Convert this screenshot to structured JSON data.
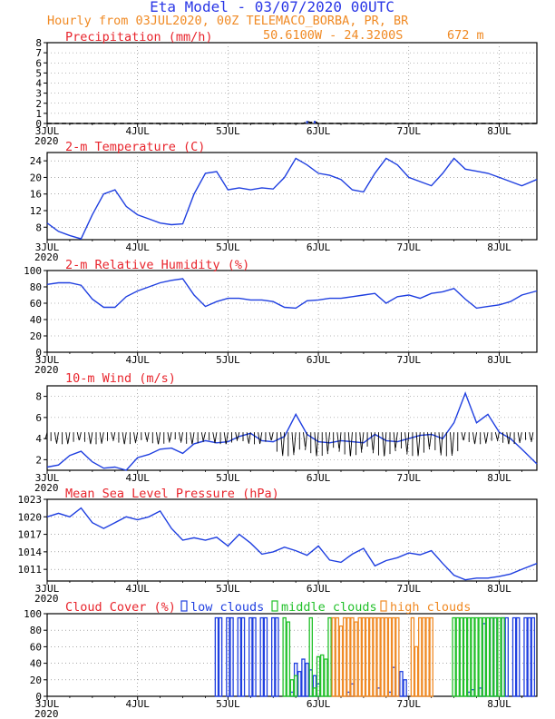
{
  "header": {
    "title": "Eta Model - 03/07/2020 00UTC",
    "subtitle": "Hourly from 03JUL2020, 00Z  TELEMACO_BORBA, PR, BR",
    "coords": "50.6100W - 24.3200S",
    "elevation": "672  m"
  },
  "colors": {
    "title": "#2a37e6",
    "subtitle": "#f08a24",
    "panel_title": "#e8242c",
    "temperature": "#1f3fe0",
    "low_clouds": "#1f3fe0",
    "middle_clouds": "#22c12a",
    "high_clouds": "#f08a24"
  },
  "days": [
    "3JUL",
    "4JUL",
    "5JUL",
    "6JUL",
    "7JUL",
    "8JUL"
  ],
  "year": "2020",
  "chart_data": [
    {
      "id": "precip",
      "type": "line",
      "title": "Precipitation (mm/h)",
      "ylim": [
        0,
        8
      ],
      "yticks": [
        "0",
        "1",
        "2",
        "3",
        "4",
        "5",
        "6",
        "7",
        "8"
      ],
      "series": [
        {
          "name": "precipitation",
          "x": [
            0,
            68,
            69,
            70,
            71,
            72,
            130
          ],
          "values": [
            0,
            0,
            0.2,
            0.1,
            0.2,
            0,
            0
          ]
        }
      ]
    },
    {
      "id": "temp",
      "type": "line",
      "title": "2-m Temperature (C)",
      "ylim": [
        5,
        26
      ],
      "yticks": [
        "8",
        "12",
        "16",
        "20",
        "24"
      ],
      "series": [
        {
          "name": "temperature",
          "x": [
            0,
            3,
            6,
            9,
            12,
            15,
            18,
            21,
            24,
            27,
            30,
            33,
            36,
            39,
            42,
            45,
            48,
            51,
            54,
            57,
            60,
            63,
            66,
            69,
            72,
            75,
            78,
            81,
            84,
            87,
            90,
            93,
            96,
            99,
            102,
            105,
            108,
            111,
            114,
            117,
            120,
            123,
            126,
            130
          ],
          "values": [
            9,
            7,
            6,
            5.2,
            11,
            16,
            17,
            13,
            11,
            10,
            9,
            8.6,
            8.8,
            16,
            21,
            21.4,
            17,
            17.5,
            17,
            17.5,
            17.2,
            20,
            24.6,
            23,
            21,
            20.5,
            19.5,
            17,
            16.5,
            21,
            24.6,
            23,
            20,
            19,
            18,
            21,
            24.6,
            22,
            21.5,
            21,
            20,
            19,
            18,
            19.5
          ]
        }
      ]
    },
    {
      "id": "rh",
      "type": "line",
      "title": "2-m Relative Humidity (%)",
      "ylim": [
        0,
        100
      ],
      "yticks": [
        "0",
        "20",
        "40",
        "60",
        "80",
        "100"
      ],
      "series": [
        {
          "name": "humidity",
          "x": [
            0,
            3,
            6,
            9,
            12,
            15,
            18,
            21,
            24,
            27,
            30,
            33,
            36,
            39,
            42,
            45,
            48,
            51,
            54,
            57,
            60,
            63,
            66,
            69,
            72,
            75,
            78,
            81,
            84,
            87,
            90,
            93,
            96,
            99,
            102,
            105,
            108,
            111,
            114,
            117,
            120,
            123,
            126,
            130
          ],
          "values": [
            83,
            85,
            85,
            82,
            65,
            55,
            55,
            68,
            75,
            80,
            85,
            88,
            90,
            70,
            56,
            62,
            66,
            66,
            64,
            64,
            62,
            55,
            54,
            63,
            64,
            66,
            66,
            68,
            70,
            72,
            60,
            68,
            70,
            66,
            72,
            74,
            78,
            65,
            54,
            56,
            58,
            62,
            70,
            75
          ]
        }
      ]
    },
    {
      "id": "wind",
      "type": "line",
      "title": "10-m Wind (m/s)",
      "ylim": [
        1,
        9
      ],
      "yticks": [
        "2",
        "4",
        "6",
        "8"
      ],
      "series": [
        {
          "name": "wind speed",
          "x": [
            0,
            3,
            6,
            9,
            12,
            15,
            18,
            21,
            24,
            27,
            30,
            33,
            36,
            39,
            42,
            45,
            48,
            51,
            54,
            57,
            60,
            63,
            66,
            69,
            72,
            75,
            78,
            81,
            84,
            87,
            90,
            93,
            96,
            99,
            102,
            105,
            108,
            111,
            114,
            117,
            120,
            123,
            126,
            130
          ],
          "values": [
            1.3,
            1.5,
            2.4,
            2.8,
            1.8,
            1.2,
            1.3,
            1.0,
            2.2,
            2.5,
            3.0,
            3.1,
            2.6,
            3.5,
            3.8,
            3.6,
            3.7,
            4.2,
            4.5,
            3.8,
            3.7,
            4.2,
            6.3,
            4.4,
            3.7,
            3.6,
            3.8,
            3.7,
            3.6,
            4.4,
            3.8,
            3.7,
            4.0,
            4.3,
            4.4,
            4.0,
            5.5,
            8.3,
            5.5,
            6.3,
            4.6,
            4.0,
            3.0,
            1.6
          ]
        }
      ]
    },
    {
      "id": "slp",
      "type": "line",
      "title": "Mean Sea Level Pressure (hPa)",
      "ylim": [
        1009,
        1023
      ],
      "yticks": [
        "1011",
        "1014",
        "1017",
        "1020",
        "1023"
      ],
      "series": [
        {
          "name": "pressure",
          "x": [
            0,
            3,
            6,
            9,
            12,
            15,
            18,
            21,
            24,
            27,
            30,
            33,
            36,
            39,
            42,
            45,
            48,
            51,
            54,
            57,
            60,
            63,
            66,
            69,
            72,
            75,
            78,
            81,
            84,
            87,
            90,
            93,
            96,
            99,
            102,
            105,
            108,
            111,
            114,
            117,
            120,
            123,
            126,
            130
          ],
          "values": [
            1020,
            1020.6,
            1020,
            1021.5,
            1019,
            1018,
            1019,
            1020,
            1019.5,
            1020,
            1021,
            1018,
            1016,
            1016.4,
            1016,
            1016.5,
            1015,
            1017,
            1015.5,
            1013.6,
            1014,
            1014.8,
            1014.2,
            1013.4,
            1015,
            1012.6,
            1012.2,
            1013.6,
            1014.6,
            1011.6,
            1012.5,
            1013,
            1013.8,
            1013.5,
            1014.2,
            1012.0,
            1010.0,
            1009.2,
            1009.5,
            1009.5,
            1009.8,
            1010.2,
            1011,
            1012
          ]
        }
      ]
    },
    {
      "id": "cloud",
      "type": "bar",
      "title": "Cloud Cover (%)",
      "ylim": [
        0,
        100
      ],
      "yticks": [
        "0",
        "20",
        "40",
        "60",
        "80",
        "100"
      ],
      "legend": [
        "low clouds",
        "middle clouds",
        "high clouds"
      ],
      "series": [
        {
          "name": "low clouds",
          "hours": [
            45,
            46,
            48,
            49,
            51,
            52,
            54,
            55,
            57,
            58,
            60,
            61,
            65,
            66,
            67,
            68,
            69,
            70,
            71,
            72,
            80,
            81,
            88,
            91,
            92,
            94,
            95,
            112,
            113,
            115,
            116,
            118,
            119,
            121,
            122,
            124,
            125,
            127,
            128,
            129
          ],
          "values": [
            95,
            95,
            95,
            95,
            95,
            95,
            95,
            95,
            95,
            95,
            95,
            95,
            5,
            40,
            30,
            45,
            40,
            32,
            25,
            15,
            5,
            15,
            10,
            5,
            35,
            30,
            20,
            5,
            8,
            10,
            88,
            95,
            95,
            95,
            95,
            95,
            95,
            95,
            95,
            95
          ]
        },
        {
          "name": "middle clouds",
          "hours": [
            63,
            64,
            65,
            66,
            70,
            71,
            72,
            73,
            74,
            75,
            108,
            109,
            110,
            111,
            112,
            113,
            114,
            115,
            116,
            117,
            118,
            119,
            120,
            121
          ],
          "values": [
            95,
            90,
            20,
            25,
            95,
            10,
            48,
            50,
            45,
            95,
            95,
            95,
            95,
            95,
            95,
            95,
            95,
            95,
            95,
            95,
            95,
            95,
            95,
            95
          ]
        },
        {
          "name": "high clouds",
          "hours": [
            76,
            77,
            78,
            79,
            80,
            81,
            82,
            83,
            84,
            85,
            86,
            87,
            88,
            89,
            90,
            91,
            92,
            93,
            97,
            98,
            99,
            100,
            101,
            102
          ],
          "values": [
            95,
            95,
            85,
            95,
            95,
            95,
            90,
            95,
            95,
            95,
            95,
            95,
            95,
            95,
            95,
            95,
            95,
            95,
            95,
            60,
            95,
            95,
            95,
            95
          ]
        }
      ]
    }
  ]
}
